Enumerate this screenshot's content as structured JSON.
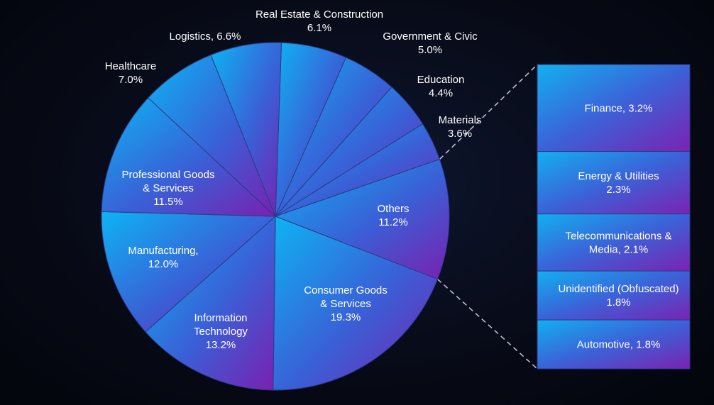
{
  "chart_data": {
    "type": "pie",
    "slices": [
      {
        "name": "Real Estate & Construction",
        "value": 6.1,
        "label_lines": [
          "Real Estate & Construction",
          "6.1%"
        ]
      },
      {
        "name": "Government & Civic",
        "value": 5.0,
        "label_lines": [
          "Government & Civic",
          "5.0%"
        ]
      },
      {
        "name": "Education",
        "value": 4.4,
        "label_lines": [
          "Education",
          "4.4%"
        ]
      },
      {
        "name": "Materials",
        "value": 3.6,
        "label_lines": [
          "Materials",
          "3.6%"
        ]
      },
      {
        "name": "Others",
        "value": 11.2,
        "label_lines": [
          "Others",
          "11.2%"
        ]
      },
      {
        "name": "Consumer Goods & Services",
        "value": 19.3,
        "label_lines": [
          "Consumer Goods",
          "& Services",
          "19.3%"
        ]
      },
      {
        "name": "Information Technology",
        "value": 13.2,
        "label_lines": [
          "Information",
          "Technology",
          "13.2%"
        ]
      },
      {
        "name": "Manufacturing",
        "value": 12.0,
        "label_lines": [
          "Manufacturing,",
          "12.0%"
        ]
      },
      {
        "name": "Professional Goods & Services",
        "value": 11.5,
        "label_lines": [
          "Professional Goods",
          "& Services",
          "11.5%"
        ]
      },
      {
        "name": "Healthcare",
        "value": 7.0,
        "label_lines": [
          "Healthcare",
          "7.0%"
        ]
      },
      {
        "name": "Logistics",
        "value": 6.6,
        "label_lines": [
          "Logistics, 6.6%"
        ]
      }
    ],
    "breakdown": {
      "of": "Others",
      "items": [
        {
          "name": "Finance",
          "value": 3.2,
          "label_lines": [
            "Finance, 3.2%"
          ]
        },
        {
          "name": "Energy & Utilities",
          "value": 2.3,
          "label_lines": [
            "Energy & Utilities",
            "2.3%"
          ]
        },
        {
          "name": "Telecommunications & Media",
          "value": 2.1,
          "label_lines": [
            "Telecommunications &",
            "Media, 2.1%"
          ]
        },
        {
          "name": "Unidentified (Obfuscated)",
          "value": 1.8,
          "label_lines": [
            "Unidentified (Obfuscated)",
            "1.8%"
          ]
        },
        {
          "name": "Automotive",
          "value": 1.8,
          "label_lines": [
            "Automotive, 1.8%"
          ]
        }
      ]
    },
    "colors": {
      "gradient_start": "#0db4f3",
      "gradient_mid": "#3a5fd6",
      "gradient_end": "#7a20b0",
      "separator": "#2a3a8a",
      "connector": "#b9bfd0"
    }
  }
}
